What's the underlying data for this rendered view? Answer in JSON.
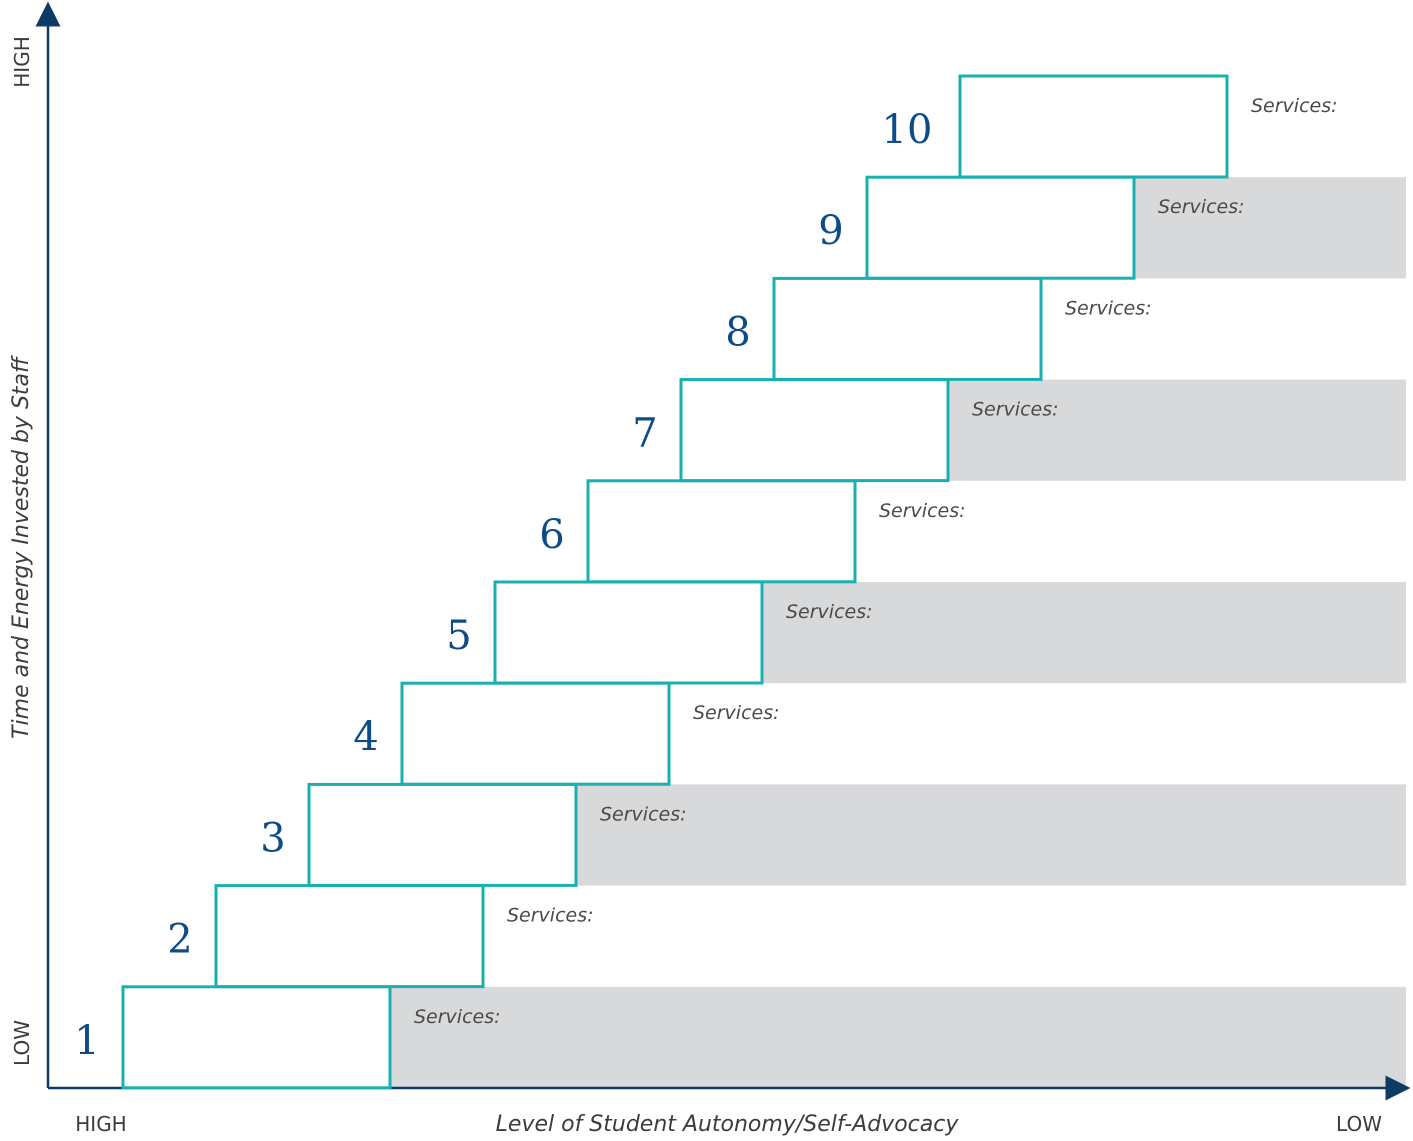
{
  "x_axis": {
    "title": "Level of Student Autonomy/Self-Advocacy",
    "start_label": "HIGH",
    "end_label": "LOW"
  },
  "y_axis": {
    "title": "Time and Energy Invested by Staff",
    "start_label": "LOW",
    "end_label": "HIGH"
  },
  "steps": [
    {
      "number": "1",
      "services_label": "Services:"
    },
    {
      "number": "2",
      "services_label": "Services:"
    },
    {
      "number": "3",
      "services_label": "Services:"
    },
    {
      "number": "4",
      "services_label": "Services:"
    },
    {
      "number": "5",
      "services_label": "Services:"
    },
    {
      "number": "6",
      "services_label": "Services:"
    },
    {
      "number": "7",
      "services_label": "Services:"
    },
    {
      "number": "8",
      "services_label": "Services:"
    },
    {
      "number": "9",
      "services_label": "Services:"
    },
    {
      "number": "10",
      "services_label": "Services:"
    }
  ],
  "colors": {
    "axis": "#0d3b66",
    "box_border": "#1ab0b0",
    "band": "#d8d9db",
    "number": "#0d4c86"
  }
}
